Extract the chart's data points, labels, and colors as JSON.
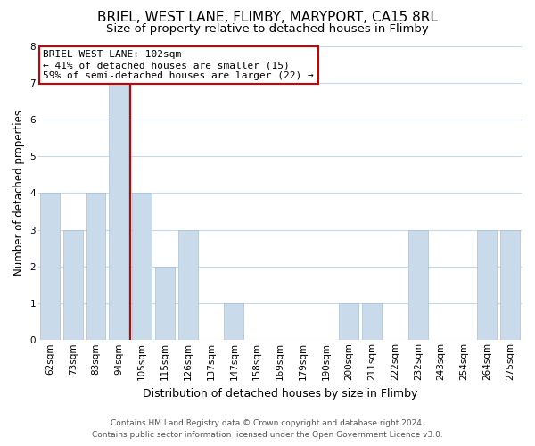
{
  "title": "BRIEL, WEST LANE, FLIMBY, MARYPORT, CA15 8RL",
  "subtitle": "Size of property relative to detached houses in Flimby",
  "xlabel": "Distribution of detached houses by size in Flimby",
  "ylabel": "Number of detached properties",
  "bar_labels": [
    "62sqm",
    "73sqm",
    "83sqm",
    "94sqm",
    "105sqm",
    "115sqm",
    "126sqm",
    "137sqm",
    "147sqm",
    "158sqm",
    "169sqm",
    "179sqm",
    "190sqm",
    "200sqm",
    "211sqm",
    "222sqm",
    "232sqm",
    "243sqm",
    "254sqm",
    "264sqm",
    "275sqm"
  ],
  "bar_values": [
    4,
    3,
    4,
    7,
    4,
    2,
    3,
    0,
    1,
    0,
    0,
    0,
    0,
    1,
    1,
    0,
    3,
    0,
    0,
    3,
    3
  ],
  "bar_color": "#c9daea",
  "bar_edge_color": "#aabfcf",
  "vline_x": 3.5,
  "vline_color": "#cc0000",
  "ylim": [
    0,
    8
  ],
  "yticks": [
    0,
    1,
    2,
    3,
    4,
    5,
    6,
    7,
    8
  ],
  "annotation_title": "BRIEL WEST LANE: 102sqm",
  "annotation_line1": "← 41% of detached houses are smaller (15)",
  "annotation_line2": "59% of semi-detached houses are larger (22) →",
  "annotation_box_color": "#ffffff",
  "annotation_box_edge": "#cc0000",
  "footer_line1": "Contains HM Land Registry data © Crown copyright and database right 2024.",
  "footer_line2": "Contains public sector information licensed under the Open Government Licence v3.0.",
  "background_color": "#ffffff",
  "grid_color": "#c8d8e8",
  "title_fontsize": 11,
  "subtitle_fontsize": 9.5,
  "ylabel_fontsize": 8.5,
  "xlabel_fontsize": 9,
  "tick_fontsize": 7.5,
  "ann_fontsize": 8,
  "footer_fontsize": 6.5
}
